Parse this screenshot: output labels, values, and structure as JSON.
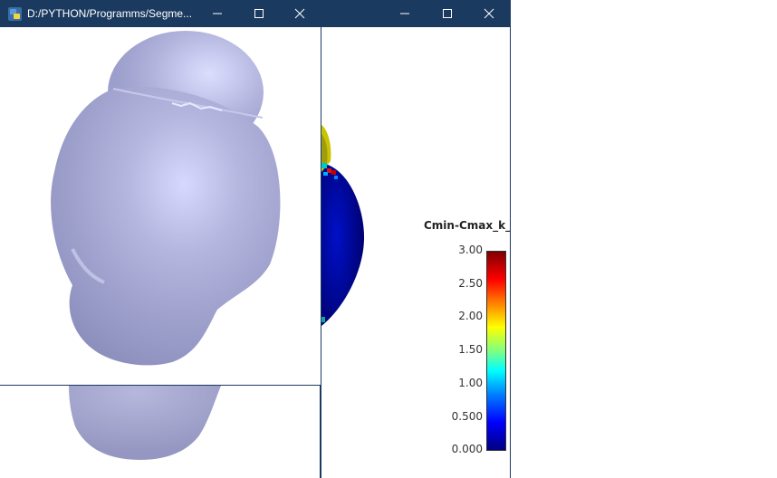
{
  "left_window": {
    "title": "D:/PYTHON/Programms/Segme...",
    "icon": "python-icon",
    "controls": [
      "minimize-icon",
      "maximize-icon",
      "close-icon"
    ],
    "surface_color": "#aeb0d6"
  },
  "right_window": {
    "controls": [
      "minimize-icon",
      "maximize-icon",
      "close-icon"
    ],
    "colorbar": {
      "title": "Cmin-Cmax_k_m",
      "ticks": [
        "3.00",
        "2.50",
        "2.00",
        "1.50",
        "1.00",
        "0.500",
        "0.000"
      ],
      "range": [
        0,
        3
      ],
      "colormap": [
        "#00007f",
        "#0000ff",
        "#00ffff",
        "#ffff00",
        "#ff0000",
        "#7f0000"
      ]
    }
  },
  "colors": {
    "titlebar": "#1b3a60",
    "background": "#ffffff"
  }
}
